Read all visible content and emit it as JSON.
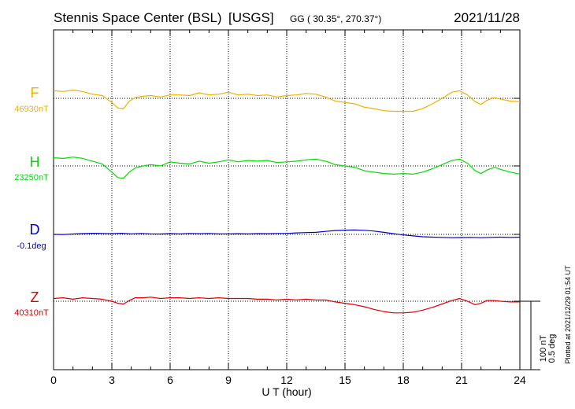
{
  "header": {
    "station": "Stennis Space Center (BSL)",
    "network": "[USGS]",
    "coords": "GG ( 30.35°, 270.37°)",
    "date": "2021/11/28"
  },
  "footer": {
    "plotted": "Plotted at 2021/12/29 01:54 UT",
    "scale_nt": "100 nT",
    "scale_deg": "0.5 deg"
  },
  "colors": {
    "F": "#f0b000",
    "H": "#00dd00",
    "D": "#0000cc",
    "Z": "#dd0000"
  },
  "chart_data": {
    "type": "line",
    "title": "Stennis Space Center (BSL)",
    "xlabel": "U T (hour)",
    "xlim": [
      0,
      24
    ],
    "xticks": [
      0,
      3,
      6,
      9,
      12,
      15,
      18,
      21,
      24
    ],
    "xtick_labels": [
      "0",
      "3",
      "6",
      "9",
      "12",
      "15",
      "18",
      "21",
      "24"
    ],
    "grid": true,
    "series": [
      {
        "name": "F",
        "baseline_label": "46930nT",
        "unit": "nT",
        "baseline": 46930,
        "x": [
          0,
          0.5,
          1,
          1.5,
          2,
          2.5,
          3,
          3.3,
          3.6,
          3.9,
          4.2,
          4.6,
          5,
          5.5,
          6,
          6.5,
          7,
          7.5,
          8,
          8.5,
          9,
          9.5,
          10,
          10.5,
          11,
          11.5,
          12,
          12.5,
          13,
          13.5,
          14,
          14.5,
          15,
          15.5,
          16,
          16.5,
          17,
          17.5,
          18,
          18.5,
          19,
          19.5,
          20,
          20.5,
          20.9,
          21.3,
          21.7,
          22,
          22.3,
          22.7,
          23,
          23.5,
          24
        ],
        "values": [
          46941,
          46940,
          46942,
          46940,
          46936,
          46934,
          46924,
          46916,
          46915,
          46926,
          46931,
          46933,
          46934,
          46932,
          46935,
          46935,
          46934,
          46938,
          46935,
          46936,
          46939,
          46935,
          46936,
          46934,
          46935,
          46932,
          46934,
          46935,
          46937,
          46936,
          46932,
          46926,
          46924,
          46922,
          46917,
          46915,
          46912,
          46911,
          46911,
          46911,
          46915,
          46922,
          46930,
          46939,
          46941,
          46935,
          46925,
          46921,
          46927,
          46931,
          46929,
          46926,
          46925
        ]
      },
      {
        "name": "H",
        "baseline_label": "23250nT",
        "unit": "nT",
        "baseline": 23250,
        "x": [
          0,
          0.5,
          1,
          1.5,
          2,
          2.5,
          3,
          3.3,
          3.6,
          3.9,
          4.2,
          4.6,
          5,
          5.5,
          6,
          6.5,
          7,
          7.5,
          8,
          8.5,
          9,
          9.5,
          10,
          10.5,
          11,
          11.5,
          12,
          12.5,
          13,
          13.5,
          14,
          14.5,
          15,
          15.5,
          16,
          16.5,
          17,
          17.5,
          18,
          18.5,
          19,
          19.5,
          20,
          20.5,
          20.9,
          21.3,
          21.7,
          22,
          22.3,
          22.7,
          23,
          23.5,
          24
        ],
        "values": [
          23262,
          23261,
          23263,
          23261,
          23257,
          23253,
          23241,
          23233,
          23232,
          23241,
          23247,
          23250,
          23252,
          23250,
          23256,
          23254,
          23253,
          23257,
          23254,
          23256,
          23259,
          23256,
          23258,
          23257,
          23258,
          23255,
          23256,
          23257,
          23259,
          23260,
          23257,
          23252,
          23250,
          23248,
          23243,
          23241,
          23239,
          23238,
          23239,
          23238,
          23241,
          23246,
          23252,
          23258,
          23260,
          23254,
          23243,
          23239,
          23244,
          23248,
          23245,
          23241,
          23238
        ]
      },
      {
        "name": "D",
        "baseline_label": "-0.1deg",
        "unit": "deg",
        "baseline": -0.1,
        "x": [
          0,
          0.5,
          1,
          1.5,
          2,
          2.5,
          3,
          3.5,
          4,
          4.5,
          5,
          5.5,
          6,
          6.5,
          7,
          7.5,
          8,
          8.5,
          9,
          9.5,
          10,
          10.5,
          11,
          11.5,
          12,
          12.5,
          13,
          13.5,
          14,
          14.5,
          15,
          15.5,
          16,
          16.5,
          17,
          17.5,
          18,
          18.5,
          19,
          19.5,
          20,
          20.5,
          21,
          21.5,
          22,
          22.5,
          23,
          23.5,
          24
        ],
        "values": [
          -0.1,
          -0.101,
          -0.097,
          -0.094,
          -0.092,
          -0.093,
          -0.095,
          -0.092,
          -0.096,
          -0.093,
          -0.096,
          -0.097,
          -0.094,
          -0.096,
          -0.093,
          -0.095,
          -0.093,
          -0.096,
          -0.096,
          -0.095,
          -0.096,
          -0.094,
          -0.095,
          -0.093,
          -0.093,
          -0.089,
          -0.087,
          -0.085,
          -0.078,
          -0.072,
          -0.069,
          -0.068,
          -0.07,
          -0.076,
          -0.085,
          -0.095,
          -0.104,
          -0.111,
          -0.117,
          -0.12,
          -0.122,
          -0.124,
          -0.123,
          -0.122,
          -0.124,
          -0.122,
          -0.12,
          -0.122,
          -0.12
        ]
      },
      {
        "name": "Z",
        "baseline_label": "40310nT",
        "unit": "nT",
        "baseline": 40310,
        "x": [
          0,
          0.5,
          1,
          1.5,
          2,
          2.5,
          3,
          3.3,
          3.6,
          3.9,
          4.2,
          4.6,
          5,
          5.5,
          6,
          6.5,
          7,
          7.5,
          8,
          8.5,
          9,
          9.5,
          10,
          10.5,
          11,
          11.5,
          12,
          12.5,
          13,
          13.5,
          14,
          14.5,
          15,
          15.5,
          16,
          16.5,
          17,
          17.5,
          18,
          18.5,
          19,
          19.5,
          20,
          20.5,
          20.9,
          21.3,
          21.7,
          22,
          22.3,
          22.7,
          23,
          23.5,
          24
        ],
        "values": [
          40314,
          40315,
          40313,
          40315,
          40314,
          40313,
          40310,
          40307,
          40306,
          40311,
          40315,
          40315,
          40316,
          40314,
          40315,
          40315,
          40314,
          40315,
          40314,
          40315,
          40314,
          40314,
          40314,
          40313,
          40313,
          40312,
          40313,
          40312,
          40313,
          40312,
          40312,
          40309,
          40307,
          40305,
          40302,
          40298,
          40295,
          40293,
          40293,
          40294,
          40297,
          40301,
          40306,
          40311,
          40314,
          40310,
          40305,
          40307,
          40311,
          40311,
          40310,
          40309,
          40309
        ]
      }
    ]
  }
}
